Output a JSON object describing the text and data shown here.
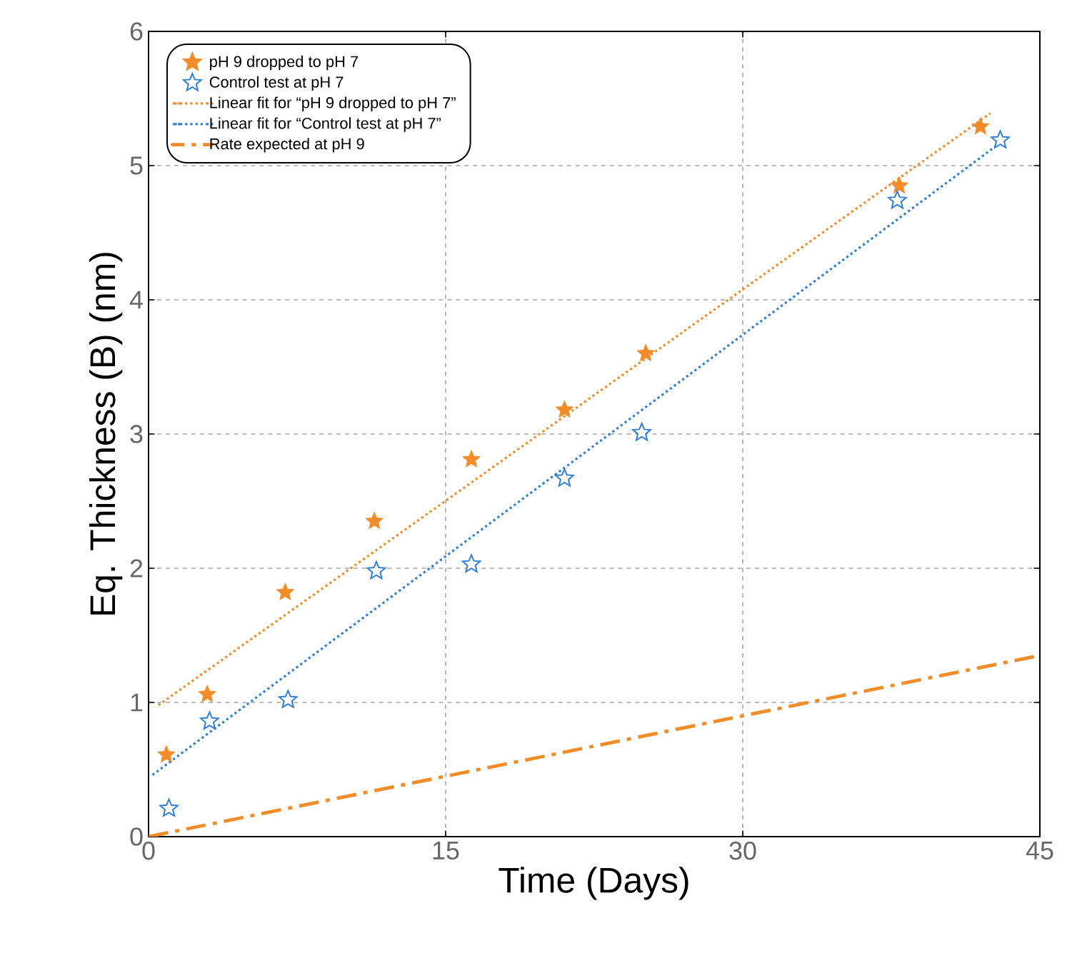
{
  "chart_data": {
    "type": "scatter",
    "xlabel": "Time (Days)",
    "ylabel": "Eq. Thickness (B) (nm)",
    "xlim": [
      0,
      45
    ],
    "ylim": [
      0,
      6
    ],
    "xticks": [
      0,
      15,
      30,
      45
    ],
    "yticks": [
      0,
      1,
      2,
      3,
      4,
      5,
      6
    ],
    "grid": true,
    "legend": "top left",
    "series": [
      {
        "name": "pH 9 dropped to pH 7",
        "marker": "star",
        "color": "#f28c28",
        "x": [
          0.9,
          2.96,
          6.9,
          11.4,
          16.3,
          21.0,
          25.1,
          37.9,
          42.0
        ],
        "values": [
          0.61,
          1.06,
          1.82,
          2.35,
          2.81,
          3.18,
          3.6,
          4.85,
          5.29
        ]
      },
      {
        "name": "Control test at pH 7",
        "marker": "star-open",
        "color": "#2f7fd8",
        "x": [
          1.03,
          3.08,
          7.04,
          11.5,
          16.3,
          21.0,
          24.9,
          37.8,
          43.0
        ],
        "values": [
          0.21,
          0.86,
          1.02,
          1.98,
          2.03,
          2.67,
          3.01,
          4.74,
          5.19
        ]
      },
      {
        "name": "Linear fit for “pH 9 dropped to pH 7”",
        "type": "line",
        "line_style": "dotted",
        "color": "#f28c28",
        "x": [
          0.5,
          42.5
        ],
        "values": [
          0.98,
          5.39
        ]
      },
      {
        "name": "Linear fit for “Control test at pH 7”",
        "type": "line",
        "line_style": "dotted",
        "color": "#2f7fd8",
        "x": [
          0.2,
          43.0
        ],
        "values": [
          0.46,
          5.17
        ]
      },
      {
        "name": "Rate expected at pH 9",
        "type": "line",
        "line_style": "dashdot",
        "color": "#f28c28",
        "x": [
          0,
          45
        ],
        "values": [
          0,
          1.35
        ]
      }
    ]
  }
}
